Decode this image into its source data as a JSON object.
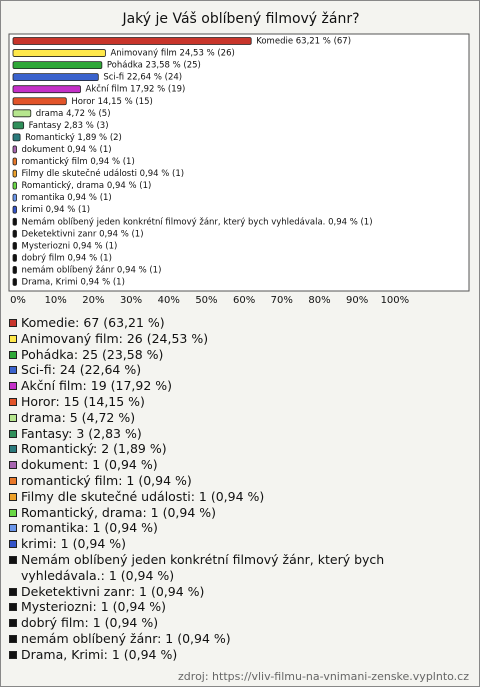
{
  "chart_data": {
    "type": "bar",
    "title": "Jaký je Váš oblíbený filmový žánr?",
    "values": [
      63.21,
      24.53,
      23.58,
      22.64,
      17.92,
      14.15,
      4.72,
      2.83,
      1.89,
      0.94,
      0.94,
      0.94,
      0.94,
      0.94,
      0.94,
      0.94,
      0.94,
      0.94,
      0.94,
      0.94,
      0.94
    ],
    "value_labels": [
      "Komedie 63,21 % (67)",
      "Animovaný film 24,53 % (26)",
      "Pohádka 23,58 % (25)",
      "Sci-fi 22,64 % (24)",
      "Akční film 17,92 % (19)",
      "Horor 14,15 % (15)",
      "drama 4,72 % (5)",
      "Fantasy 2,83 % (3)",
      "Romantický 1,89 % (2)",
      "dokument 0,94 % (1)",
      "romantický film 0,94 % (1)",
      "Filmy dle skutečné události 0,94 % (1)",
      "Romantický, drama 0,94 % (1)",
      "romantika 0,94 % (1)",
      "krimi 0,94 % (1)",
      "Nemám oblíbený jeden konkrétní filmový žánr, který bych vyhledávala. 0,94 % (1)",
      "Deketektivni zanr 0,94 % (1)",
      "Mysteriozni 0,94 % (1)",
      "dobrý film 0,94 % (1)",
      "nemám oblíbený žánr 0,94 % (1)",
      "Drama, Krimi 0,94 % (1)"
    ],
    "legend_labels": [
      "Komedie: 67 (63,21 %)",
      "Animovaný film: 26 (24,53 %)",
      "Pohádka: 25 (23,58 %)",
      "Sci-fi: 24 (22,64 %)",
      "Akční film: 19 (17,92 %)",
      "Horor: 15 (14,15 %)",
      "drama: 5 (4,72 %)",
      "Fantasy: 3 (2,83 %)",
      "Romantický: 2 (1,89 %)",
      "dokument: 1 (0,94 %)",
      "romantický film: 1 (0,94 %)",
      "Filmy dle skutečné události: 1 (0,94 %)",
      "Romantický, drama: 1 (0,94 %)",
      "romantika: 1 (0,94 %)",
      "krimi: 1 (0,94 %)",
      "Nemám oblíbený jeden konkrétní filmový žánr, který bych vyhledávala.: 1 (0,94 %)",
      "Deketektivni zanr: 1 (0,94 %)",
      "Mysteriozni: 1 (0,94 %)",
      "dobrý film: 1 (0,94 %)",
      "nemám oblíbený žánr: 1 (0,94 %)",
      "Drama, Krimi: 1 (0,94 %)"
    ],
    "colors": [
      "#c8352b",
      "#ffe84a",
      "#2fa838",
      "#3a62cc",
      "#c430c8",
      "#e2542a",
      "#b6e68e",
      "#2f8f5a",
      "#2a7a7c",
      "#a866b0",
      "#e8782a",
      "#eea22a",
      "#6ad846",
      "#6a96ea",
      "#3454c8",
      "#111111",
      "#111111",
      "#111111",
      "#111111",
      "#111111",
      "#111111"
    ],
    "xlim": [
      0,
      121
    ],
    "xticks": [
      {
        "value": 0,
        "label": "0%"
      },
      {
        "value": 10,
        "label": "10%"
      },
      {
        "value": 20,
        "label": "20%"
      },
      {
        "value": 30,
        "label": "30%"
      },
      {
        "value": 40,
        "label": "40%"
      },
      {
        "value": 50,
        "label": "50%"
      },
      {
        "value": 60,
        "label": "60%"
      },
      {
        "value": 70,
        "label": "70%"
      },
      {
        "value": 80,
        "label": "80%"
      },
      {
        "value": 90,
        "label": "90%"
      },
      {
        "value": 100,
        "label": "100%"
      }
    ],
    "source": "zdroj: https://vliv-filmu-na-vnimani-zenske.vyplnto.cz"
  }
}
